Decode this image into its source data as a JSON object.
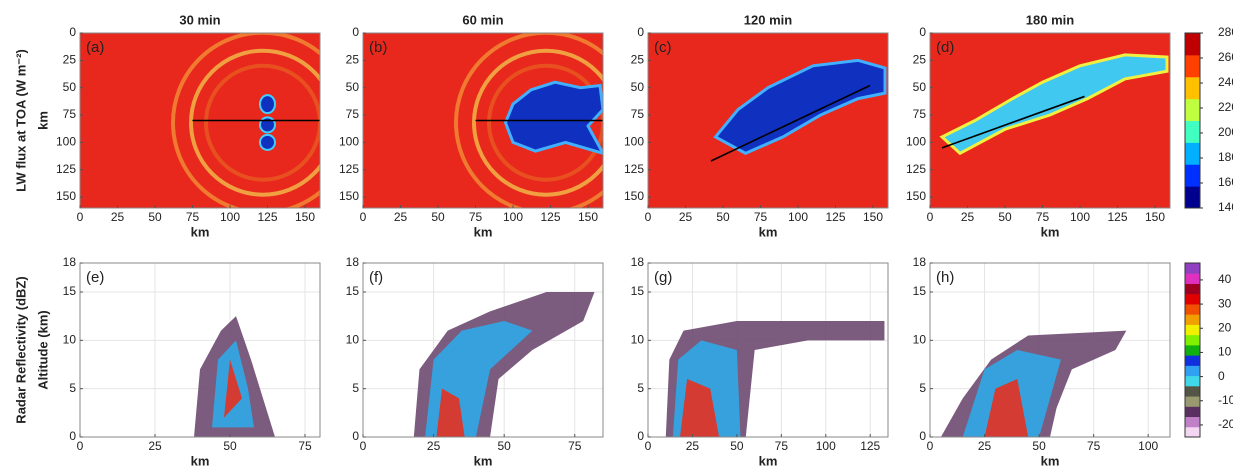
{
  "chart_data": [
    {
      "type": "map",
      "panel": "(a)",
      "title": "30 min",
      "xlabel": "km",
      "ylabel": "km",
      "row_label": "LW flux at TOA (W m⁻²)",
      "xlim": [
        0,
        160
      ],
      "xticks": [
        0,
        25,
        50,
        75,
        100,
        125,
        150
      ],
      "ylim": [
        160,
        0
      ],
      "yticks": [
        0,
        25,
        50,
        75,
        100,
        125,
        150
      ]
    },
    {
      "type": "map",
      "panel": "(b)",
      "title": "60 min",
      "xlabel": "km",
      "xlim": [
        0,
        160
      ],
      "xticks": [
        0,
        25,
        50,
        75,
        100,
        125,
        150
      ],
      "ylim": [
        160,
        0
      ],
      "yticks": [
        0,
        25,
        50,
        75,
        100,
        125,
        150
      ]
    },
    {
      "type": "map",
      "panel": "(c)",
      "title": "120 min",
      "xlabel": "km",
      "xlim": [
        0,
        160
      ],
      "xticks": [
        0,
        25,
        50,
        75,
        100,
        125,
        150
      ],
      "ylim": [
        160,
        0
      ],
      "yticks": [
        0,
        25,
        50,
        75,
        100,
        125,
        150
      ]
    },
    {
      "type": "map",
      "panel": "(d)",
      "title": "180 min",
      "xlabel": "km",
      "xlim": [
        0,
        160
      ],
      "xticks": [
        0,
        25,
        50,
        75,
        100,
        125,
        150
      ],
      "ylim": [
        160,
        0
      ],
      "yticks": [
        0,
        25,
        50,
        75,
        100,
        125,
        150
      ]
    },
    {
      "type": "section",
      "panel": "(e)",
      "xlabel": "km",
      "ylabel": "Altitude (km)",
      "row_label": "Radar Reflectivity (dBZ)",
      "xlim": [
        0,
        80
      ],
      "xticks": [
        0,
        25,
        50,
        75
      ],
      "ylim": [
        0,
        18
      ],
      "yticks": [
        0,
        5,
        10,
        15,
        18
      ],
      "grid": true
    },
    {
      "type": "section",
      "panel": "(f)",
      "xlabel": "km",
      "xlim": [
        0,
        85
      ],
      "xticks": [
        0,
        25,
        50,
        75
      ],
      "ylim": [
        0,
        18
      ],
      "yticks": [
        0,
        5,
        10,
        15,
        18
      ],
      "grid": true
    },
    {
      "type": "section",
      "panel": "(g)",
      "xlabel": "km",
      "xlim": [
        0,
        135
      ],
      "xticks": [
        0,
        25,
        50,
        75,
        100,
        125
      ],
      "ylim": [
        0,
        18
      ],
      "yticks": [
        0,
        5,
        10,
        15,
        18
      ],
      "grid": true
    },
    {
      "type": "section",
      "panel": "(h)",
      "xlabel": "km",
      "xlim": [
        0,
        110
      ],
      "xticks": [
        0,
        25,
        50,
        75,
        100
      ],
      "ylim": [
        0,
        18
      ],
      "yticks": [
        0,
        5,
        10,
        15,
        18
      ],
      "grid": true
    },
    {
      "type": "colorbar",
      "ylim": [
        140,
        280
      ],
      "yticks": [
        140,
        160,
        180,
        200,
        220,
        240,
        260,
        280
      ],
      "colors": [
        "#00008f",
        "#0030ff",
        "#00b0ff",
        "#40ffc0",
        "#c0ff40",
        "#ffc000",
        "#ff4000",
        "#c00000"
      ]
    },
    {
      "type": "colorbar",
      "ylim": [
        -25,
        47
      ],
      "yticks": [
        -20,
        -10,
        0,
        10,
        20,
        30,
        40
      ],
      "colors": [
        "#f2d6f2",
        "#c080c8",
        "#5a3060",
        "#9a9a70",
        "#555545",
        "#40d8e8",
        "#30a0f0",
        "#1030e0",
        "#10b010",
        "#80f000",
        "#f0f000",
        "#f0a000",
        "#f05000",
        "#e00000",
        "#a00020",
        "#e030c0",
        "#9040c0"
      ]
    }
  ]
}
